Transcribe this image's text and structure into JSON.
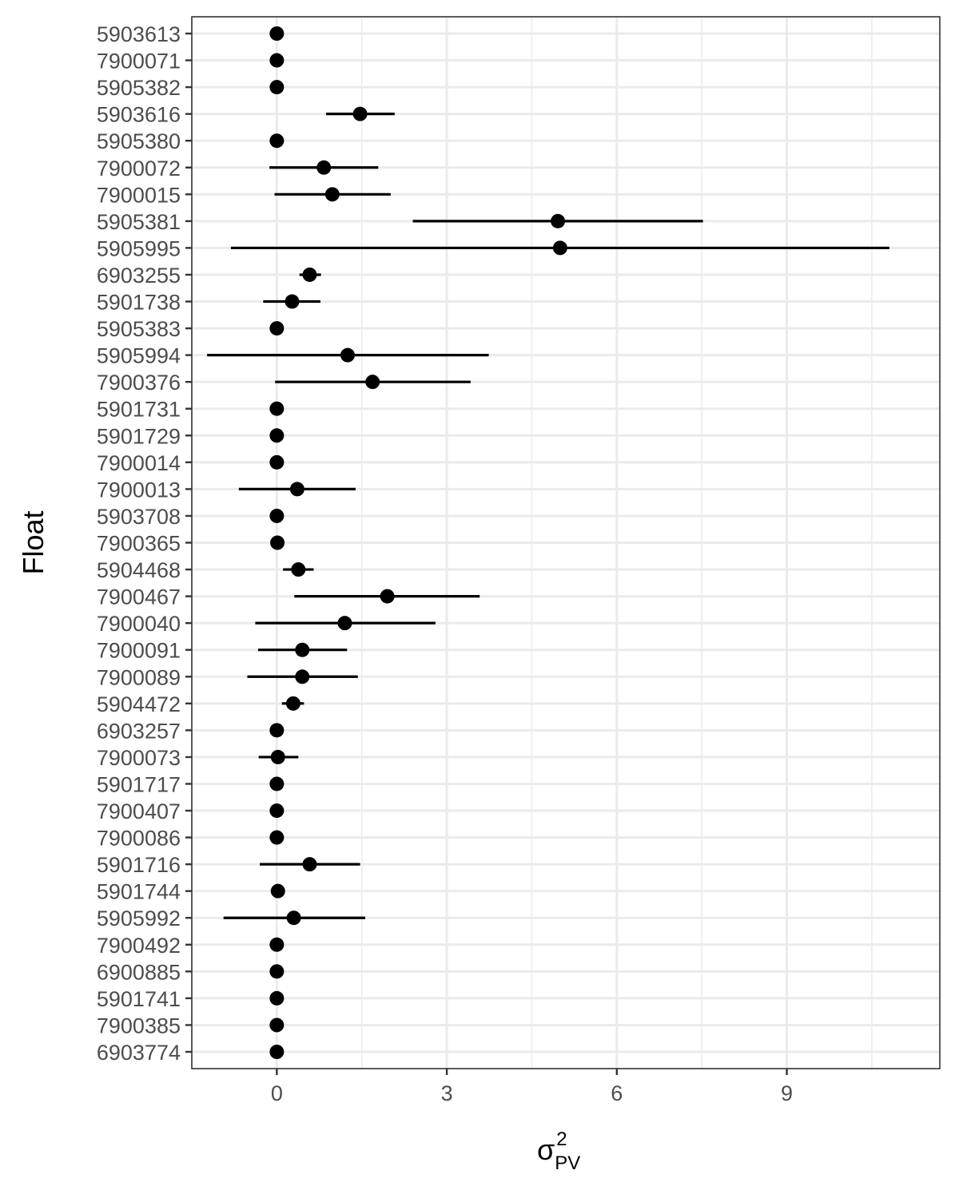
{
  "chart_data": {
    "type": "scatter",
    "style": "point-range",
    "xlabel": {
      "base": "σ",
      "sup": "2",
      "sub": "PV"
    },
    "ylabel": "Float",
    "xlim": [
      -1.5,
      11.7
    ],
    "xticks": [
      0,
      3,
      6,
      9
    ],
    "xtick_labels": [
      "0",
      "3",
      "6",
      "9"
    ],
    "grid": true,
    "legend": "none",
    "colors": {
      "point": "#000000",
      "grid": "#ebebeb",
      "panel_border": "#333333",
      "tick_text": "#4d4d4d"
    },
    "categories": [
      "5903613",
      "7900071",
      "5905382",
      "5903616",
      "5905380",
      "7900072",
      "7900015",
      "5905381",
      "5905995",
      "6903255",
      "5901738",
      "5905383",
      "5905994",
      "7900376",
      "5901731",
      "5901729",
      "7900014",
      "7900013",
      "5903708",
      "7900365",
      "5904468",
      "7900467",
      "7900040",
      "7900091",
      "7900089",
      "5904472",
      "6903257",
      "7900073",
      "5901717",
      "7900407",
      "7900086",
      "5901716",
      "5901744",
      "5905992",
      "7900492",
      "6900885",
      "5901741",
      "7900385",
      "6903774"
    ],
    "points": [
      {
        "float": "5903613",
        "value": 0.0,
        "lower": null,
        "upper": null
      },
      {
        "float": "7900071",
        "value": 0.0,
        "lower": null,
        "upper": null
      },
      {
        "float": "5905382",
        "value": 0.0,
        "lower": null,
        "upper": null
      },
      {
        "float": "5903616",
        "value": 1.47,
        "lower": 0.87,
        "upper": 2.08
      },
      {
        "float": "5905380",
        "value": 0.0,
        "lower": null,
        "upper": null
      },
      {
        "float": "7900072",
        "value": 0.83,
        "lower": -0.13,
        "upper": 1.79
      },
      {
        "float": "7900015",
        "value": 0.98,
        "lower": -0.04,
        "upper": 2.01
      },
      {
        "float": "5905381",
        "value": 4.96,
        "lower": 2.4,
        "upper": 7.52
      },
      {
        "float": "5905995",
        "value": 5.0,
        "lower": -0.81,
        "upper": 10.81
      },
      {
        "float": "6903255",
        "value": 0.58,
        "lower": 0.4,
        "upper": 0.78
      },
      {
        "float": "5901738",
        "value": 0.27,
        "lower": -0.24,
        "upper": 0.77
      },
      {
        "float": "5905383",
        "value": 0.0,
        "lower": null,
        "upper": null
      },
      {
        "float": "5905994",
        "value": 1.25,
        "lower": -1.23,
        "upper": 3.74
      },
      {
        "float": "7900376",
        "value": 1.69,
        "lower": -0.03,
        "upper": 3.42
      },
      {
        "float": "5901731",
        "value": 0.0,
        "lower": null,
        "upper": null
      },
      {
        "float": "5901729",
        "value": 0.0,
        "lower": null,
        "upper": null
      },
      {
        "float": "7900014",
        "value": 0.0,
        "lower": null,
        "upper": null
      },
      {
        "float": "7900013",
        "value": 0.36,
        "lower": -0.67,
        "upper": 1.39
      },
      {
        "float": "5903708",
        "value": 0.0,
        "lower": null,
        "upper": null
      },
      {
        "float": "7900365",
        "value": 0.01,
        "lower": null,
        "upper": null
      },
      {
        "float": "5904468",
        "value": 0.38,
        "lower": 0.11,
        "upper": 0.65
      },
      {
        "float": "7900467",
        "value": 1.95,
        "lower": 0.31,
        "upper": 3.58
      },
      {
        "float": "7900040",
        "value": 1.2,
        "lower": -0.38,
        "upper": 2.8
      },
      {
        "float": "7900091",
        "value": 0.45,
        "lower": -0.33,
        "upper": 1.24
      },
      {
        "float": "7900089",
        "value": 0.45,
        "lower": -0.52,
        "upper": 1.43
      },
      {
        "float": "5904472",
        "value": 0.29,
        "lower": 0.09,
        "upper": 0.48
      },
      {
        "float": "6903257",
        "value": 0.0,
        "lower": null,
        "upper": null
      },
      {
        "float": "7900073",
        "value": 0.02,
        "lower": -0.32,
        "upper": 0.38
      },
      {
        "float": "5901717",
        "value": 0.0,
        "lower": null,
        "upper": null
      },
      {
        "float": "7900407",
        "value": 0.0,
        "lower": null,
        "upper": null
      },
      {
        "float": "7900086",
        "value": 0.0,
        "lower": null,
        "upper": null
      },
      {
        "float": "5901716",
        "value": 0.58,
        "lower": -0.3,
        "upper": 1.47
      },
      {
        "float": "5901744",
        "value": 0.02,
        "lower": null,
        "upper": null
      },
      {
        "float": "5905992",
        "value": 0.3,
        "lower": -0.94,
        "upper": 1.56
      },
      {
        "float": "7900492",
        "value": 0.0,
        "lower": null,
        "upper": null
      },
      {
        "float": "6900885",
        "value": 0.0,
        "lower": null,
        "upper": null
      },
      {
        "float": "5901741",
        "value": 0.0,
        "lower": null,
        "upper": null
      },
      {
        "float": "7900385",
        "value": 0.0,
        "lower": null,
        "upper": null
      },
      {
        "float": "6903774",
        "value": 0.0,
        "lower": null,
        "upper": null
      }
    ]
  }
}
